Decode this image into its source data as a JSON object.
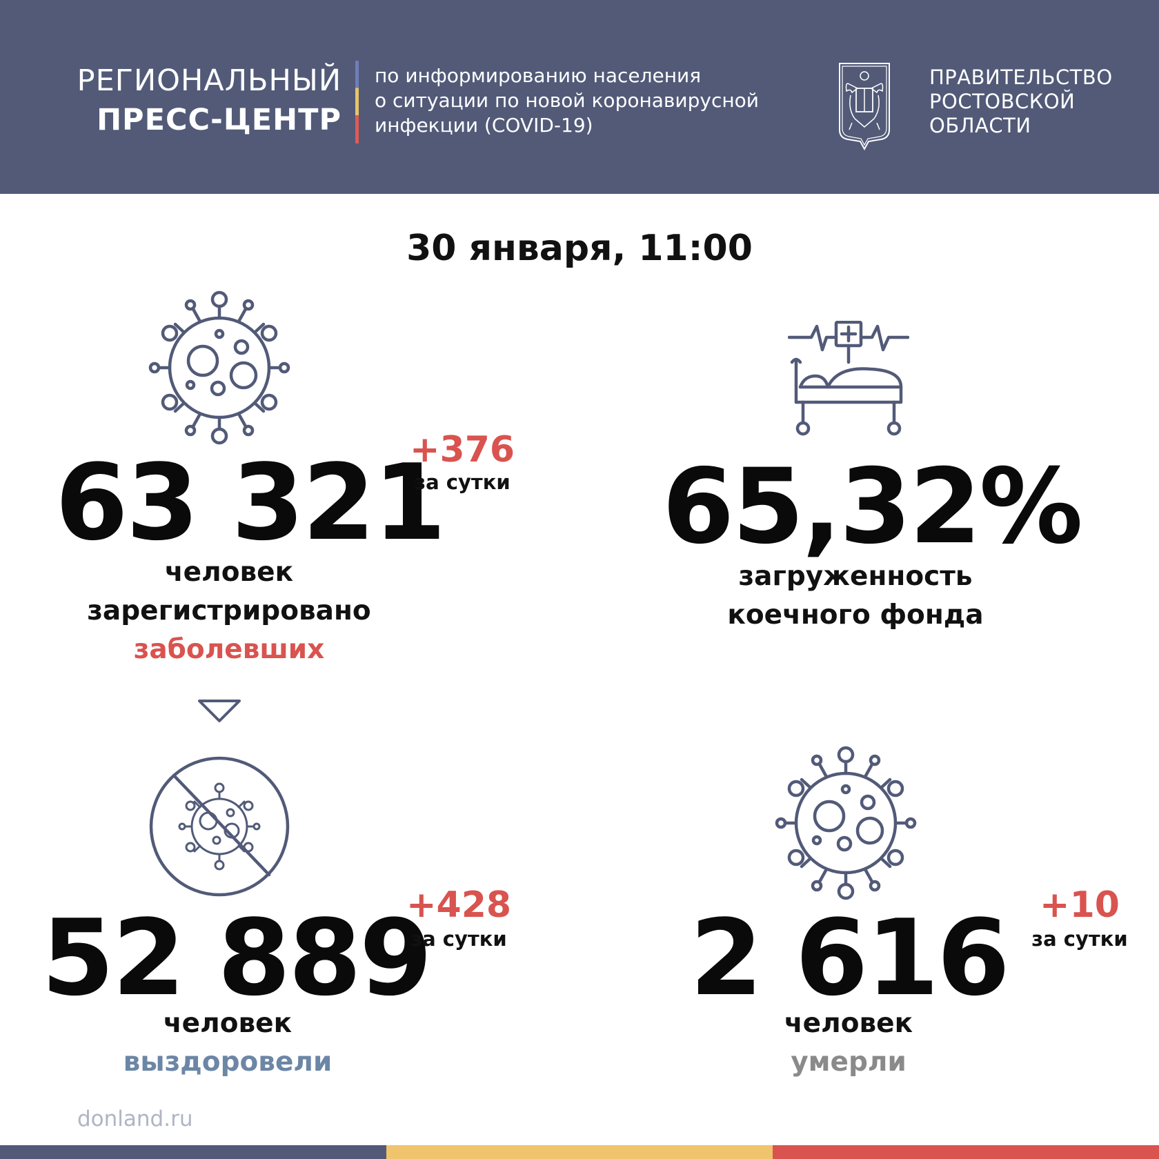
{
  "header": {
    "brand_line1": "РЕГИОНАЛЬНЫЙ",
    "brand_line2": "ПРЕСС-ЦЕНТР",
    "description_lines": [
      "по информированию населения",
      "о ситуации по новой коронавирусной",
      "инфекции (COVID-19)"
    ],
    "government_lines": [
      "ПРАВИТЕЛЬСТВО",
      "РОСТОВСКОЙ",
      "ОБЛАСТИ"
    ],
    "background_color": "#525a78"
  },
  "date": "30 января, 11:00",
  "stats": {
    "cases": {
      "value": "63 321",
      "delta": "+376",
      "per_day": "за сутки",
      "label_lines": [
        "человек",
        "зарегистрировано"
      ],
      "label_highlight": "заболевших",
      "icon": "virus-icon"
    },
    "bed_occupancy": {
      "value": "65,32%",
      "label_lines": [
        "загруженность",
        "коечного фонда"
      ],
      "icon": "hospital-bed-icon"
    },
    "recovered": {
      "value": "52 889",
      "delta": "+428",
      "per_day": "за сутки",
      "label_line": "человек",
      "label_highlight": "выздоровели",
      "icon": "virus-crossed-icon"
    },
    "deaths": {
      "value": "2 616",
      "delta": "+10",
      "per_day": "за сутки",
      "label_line": "человек",
      "label_highlight": "умерли",
      "icon": "virus-icon"
    }
  },
  "footer": {
    "site": "donland.ru",
    "stripe_colors": [
      "#525a78",
      "#f0c46c",
      "#d9534f"
    ]
  },
  "colors": {
    "accent_red": "#d9534f",
    "recovered_blue": "#6c86a5",
    "deaths_gray": "#8a8a8a",
    "icon_stroke": "#525a78"
  }
}
